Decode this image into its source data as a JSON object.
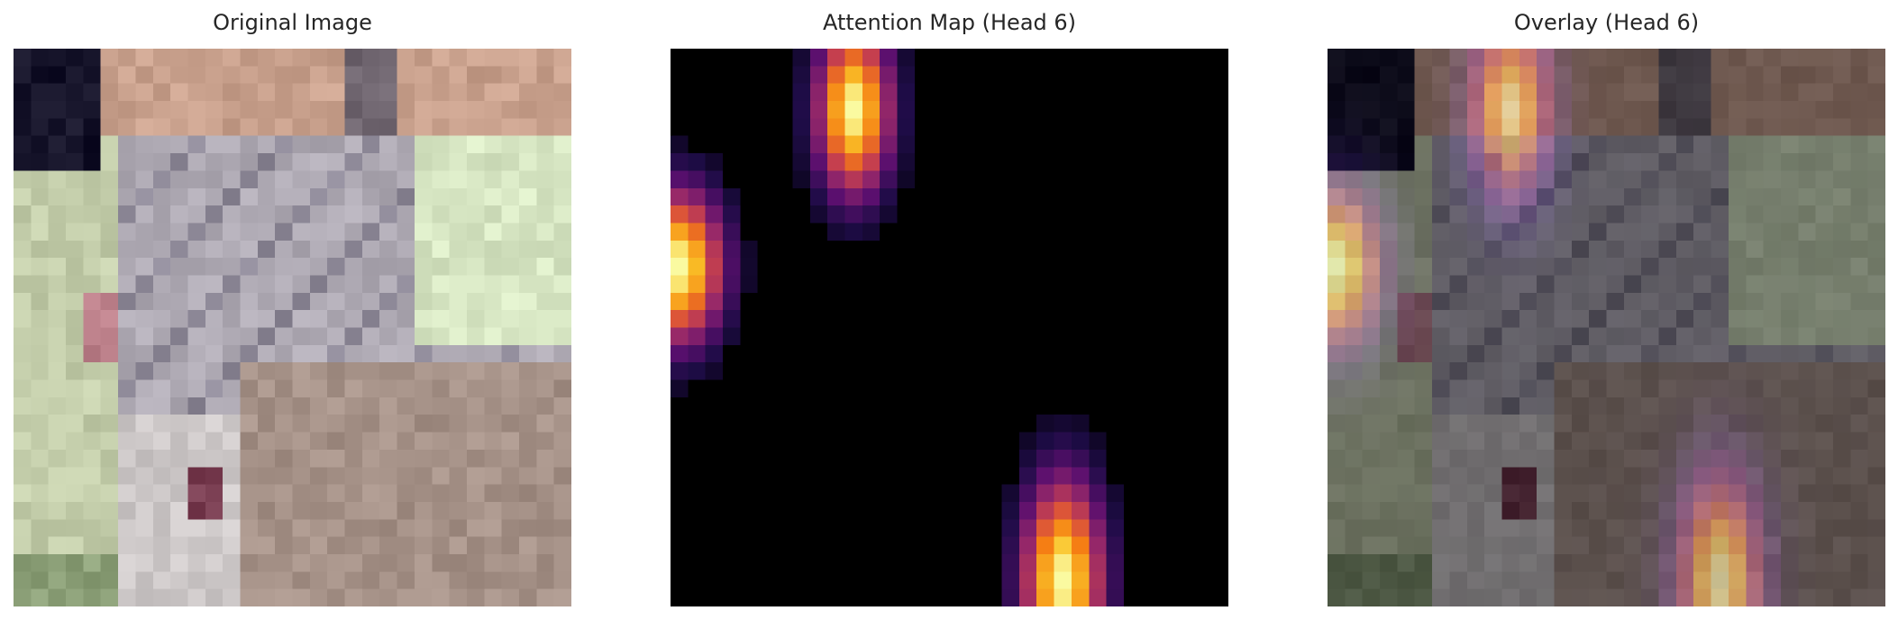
{
  "figure": {
    "panels": [
      {
        "title": "Original Image"
      },
      {
        "title": "Attention Map (Head 6)"
      },
      {
        "title": "Overlay (Head 6)"
      }
    ],
    "attention_colormap": "inferno",
    "attention_hotspots": [
      {
        "label": "top-center column",
        "grid_col": 10,
        "grid_row": 3,
        "spread_cols": 2.2,
        "spread_rows": 5.0,
        "peak": 1.0
      },
      {
        "label": "left-edge band",
        "grid_col": 0,
        "grid_row": 12,
        "spread_cols": 2.6,
        "spread_rows": 4.5,
        "peak": 1.0
      },
      {
        "label": "bottom-right column",
        "grid_col": 22,
        "grid_row": 30,
        "spread_cols": 2.4,
        "spread_rows": 6.0,
        "peak": 1.0
      }
    ],
    "grid_size": 32
  }
}
